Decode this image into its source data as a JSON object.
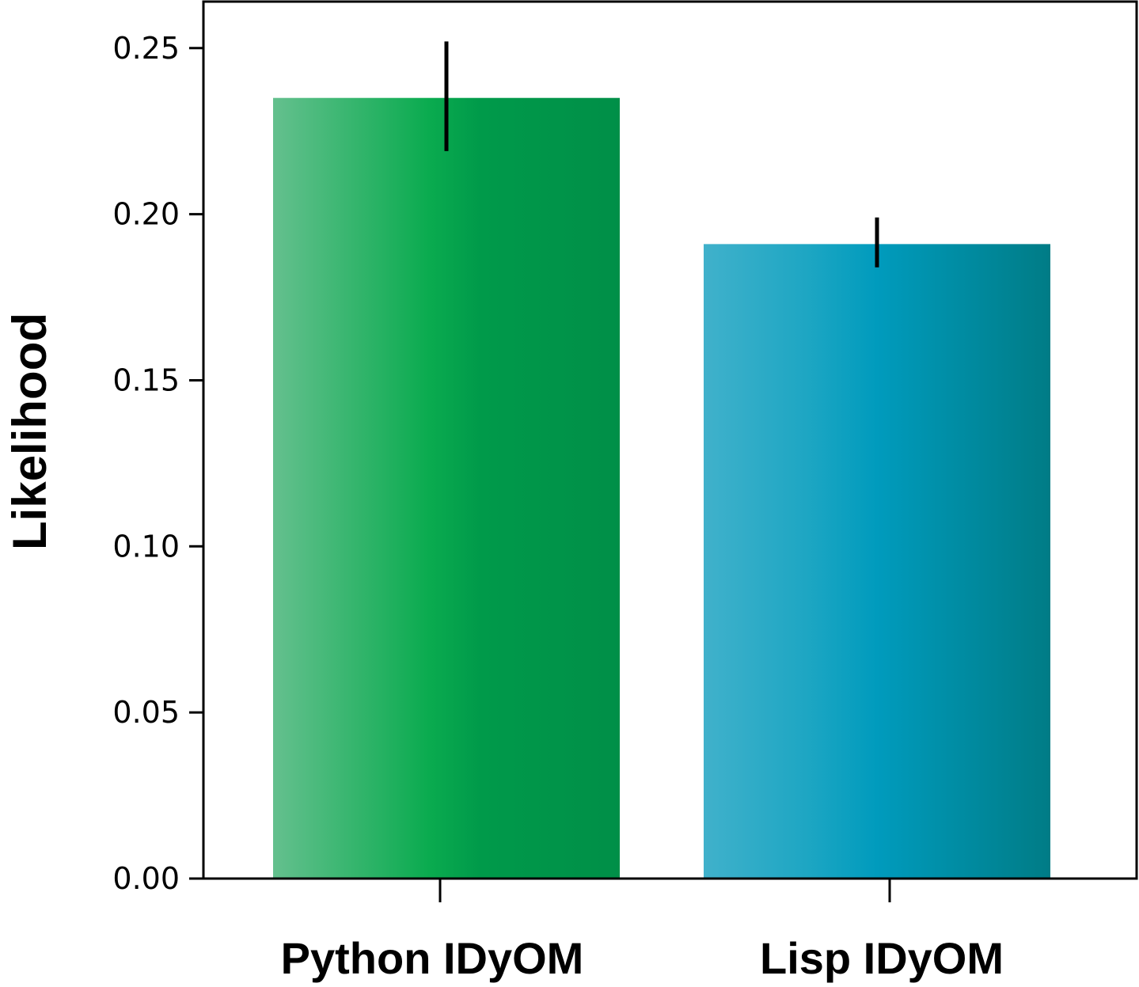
{
  "chart_data": {
    "type": "bar",
    "categories": [
      "Python IDyOM",
      "Lisp IDyOM"
    ],
    "values": [
      0.235,
      0.191
    ],
    "error_bars": [
      [
        0.219,
        0.252
      ],
      [
        0.184,
        0.199
      ]
    ],
    "ylabel": "Likelihood",
    "ylim": [
      0,
      0.264
    ],
    "yticks": [
      0.0,
      0.05,
      0.1,
      0.15,
      0.2,
      0.25
    ],
    "ytick_labels": [
      "0.00",
      "0.05",
      "0.10",
      "0.15",
      "0.20",
      "0.25"
    ],
    "grid": false,
    "colors": {
      "Python IDyOM": [
        "#64c08e",
        "#0aab4f",
        "#009a4a",
        "#008f48"
      ],
      "Lisp IDyOM": [
        "#40b1cb",
        "#1da6c3",
        "#009bbd",
        "#007c86"
      ]
    }
  }
}
